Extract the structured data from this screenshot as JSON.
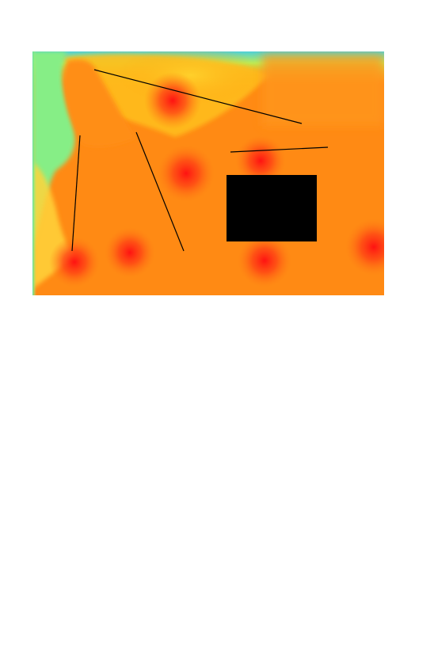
{
  "map": {
    "type": "signal-coverage-heatmap",
    "colors": {
      "strong": "#ff1010",
      "high": "#ff5a12",
      "medium": "#ff8a12",
      "elevated": "#ffa812",
      "moderate": "#ffd22c",
      "low": "#f2f23a",
      "weak": "#80f08c",
      "edge": "#28c8e6",
      "wall": "#000000",
      "obstacle": "#000000",
      "background": "#ffffff"
    },
    "legend": null
  }
}
